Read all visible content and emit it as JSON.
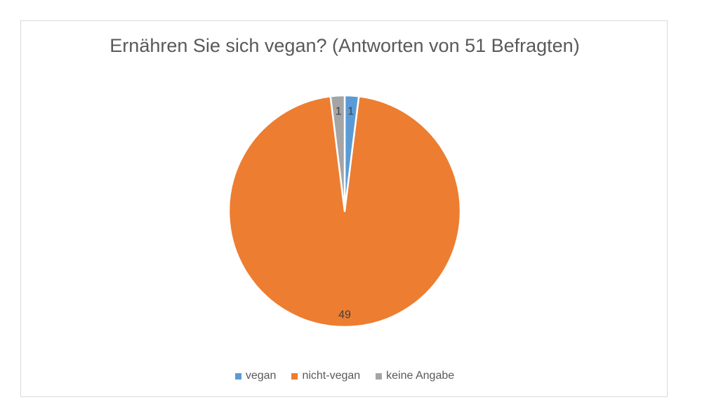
{
  "chart_data": {
    "type": "pie",
    "title": "Ernähren Sie sich vegan? (Antworten von 51 Befragten)",
    "categories": [
      "vegan",
      "nicht-vegan",
      "keine Angabe"
    ],
    "values": [
      1,
      49,
      1
    ],
    "colors": [
      "#5b9bd5",
      "#ed7d31",
      "#a5a5a5"
    ],
    "data_labels": [
      "1",
      "49",
      "1"
    ],
    "legend_position": "bottom",
    "start_angle_deg": 0,
    "direction": "clockwise"
  }
}
